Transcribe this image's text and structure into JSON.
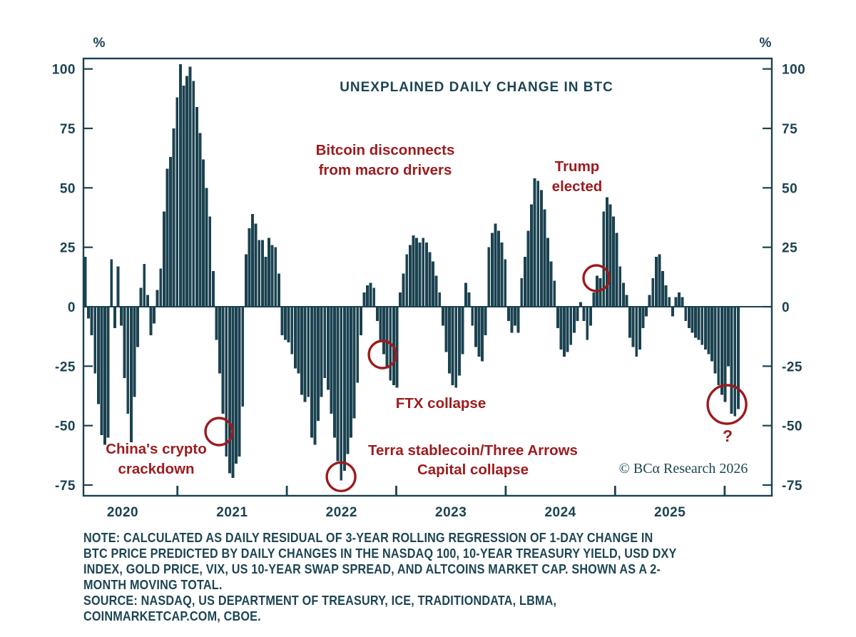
{
  "title": "UNEXPLAINED DAILY CHANGE IN BTC",
  "y_axis": {
    "unit_left": "%",
    "unit_right": "%",
    "ticks": [
      100,
      75,
      50,
      25,
      0,
      -25,
      -50,
      -75
    ]
  },
  "x_axis": {
    "years": [
      "2020",
      "2021",
      "2022",
      "2023",
      "2024",
      "2025"
    ]
  },
  "annotations": {
    "china": "China's crypto\ncrackdown",
    "btc_disconnect": "Bitcoin disconnects\nfrom macro drivers",
    "trump": "Trump\nelected",
    "ftx": "FTX collapse",
    "terra": "Terra stablecoin/Three Arrows\nCapital collapse",
    "question": "?"
  },
  "copyright": "© BCα Research 2026",
  "note": {
    "lines": [
      "NOTE: CALCULATED AS DAILY RESIDUAL OF 3-YEAR ROLLING REGRESSION OF 1-DAY CHANGE IN",
      "BTC PRICE PREDICTED BY DAILY CHANGES IN THE NASDAQ 100, 10-YEAR TREASURY YIELD, USD DXY",
      "INDEX, GOLD PRICE, VIX, US 10-YEAR SWAP SPREAD, AND ALTCOINS MARKET CAP. SHOWN AS A 2-",
      "MONTH MOVING TOTAL.",
      "SOURCE: NASDAQ, US DEPARTMENT OF TREASURY, ICE, TRADITIONDATA, LBMA,",
      "COINMARKETCAP.COM, CBOE."
    ]
  },
  "colors": {
    "teal": "#1b4250",
    "red": "#9c1b1e"
  },
  "chart_data": {
    "type": "bar",
    "title": "UNEXPLAINED DAILY CHANGE IN BTC",
    "ylabel": "%",
    "ylim": [
      -75,
      100
    ],
    "grid": false,
    "legend": "none",
    "x_categories_years": [
      "2020",
      "2021",
      "2022",
      "2023",
      "2024",
      "2025"
    ],
    "values": [
      21,
      -5,
      -12,
      -28,
      -41,
      -54,
      -58,
      -55,
      20,
      -9,
      17,
      -8,
      -30,
      -45,
      -57,
      -38,
      -17,
      8,
      18,
      5,
      -12,
      -7,
      7,
      16,
      40,
      58,
      63,
      75,
      88,
      102,
      93,
      97,
      101,
      95,
      84,
      73,
      62,
      50,
      38,
      15,
      -14,
      -28,
      -45,
      -63,
      -70,
      -72,
      -66,
      -63,
      -42,
      22,
      33,
      39,
      35,
      28,
      28,
      21,
      29,
      26,
      25,
      14,
      -12,
      -14,
      -15,
      -20,
      -26,
      -28,
      -37,
      -40,
      -38,
      -55,
      -58,
      -48,
      -38,
      -30,
      -35,
      -45,
      -55,
      -65,
      -73,
      -69,
      -62,
      -55,
      -47,
      -32,
      -12,
      6,
      9,
      10,
      8,
      -6,
      -14,
      -20,
      -26,
      -31,
      -33,
      -34,
      6,
      14,
      22,
      26,
      30,
      29,
      27,
      29,
      27,
      23,
      19,
      13,
      6,
      -8,
      -19,
      -28,
      -33,
      -34,
      -29,
      -20,
      10,
      6,
      -8,
      -17,
      -21,
      -23,
      -12,
      25,
      31,
      35,
      32,
      27,
      20,
      -6,
      -11,
      -8,
      -11,
      12,
      21,
      32,
      43,
      54,
      53,
      49,
      41,
      29,
      19,
      11,
      -9,
      -18,
      -21,
      -19,
      -16,
      -11,
      -6,
      2,
      -6,
      -14,
      -8,
      6,
      13,
      12,
      40,
      46,
      43,
      38,
      31,
      17,
      10,
      5,
      -13,
      -17,
      -21,
      -18,
      -9,
      -4,
      5,
      12,
      21,
      22,
      15,
      9,
      4,
      -4,
      4,
      6,
      4,
      -6,
      -9,
      -11,
      -13,
      -14,
      -16,
      -18,
      -20,
      -23,
      -28,
      -33,
      -37,
      -40,
      -25,
      -45,
      -46,
      -43
    ],
    "circles": [
      {
        "id": "china-crackdown",
        "index": 41.2,
        "value": -52.5,
        "r": 19
      },
      {
        "id": "terra-collapse",
        "index": 78.4,
        "value": -71.5,
        "r": 20
      },
      {
        "id": "ftx-collapse",
        "index": 91.0,
        "value": -20.1,
        "r": 19
      },
      {
        "id": "trump-elected",
        "index": 156.2,
        "value": 12,
        "r": 18
      },
      {
        "id": "question-mark",
        "index": 196.0,
        "value": -41.1,
        "r": 27
      }
    ]
  }
}
